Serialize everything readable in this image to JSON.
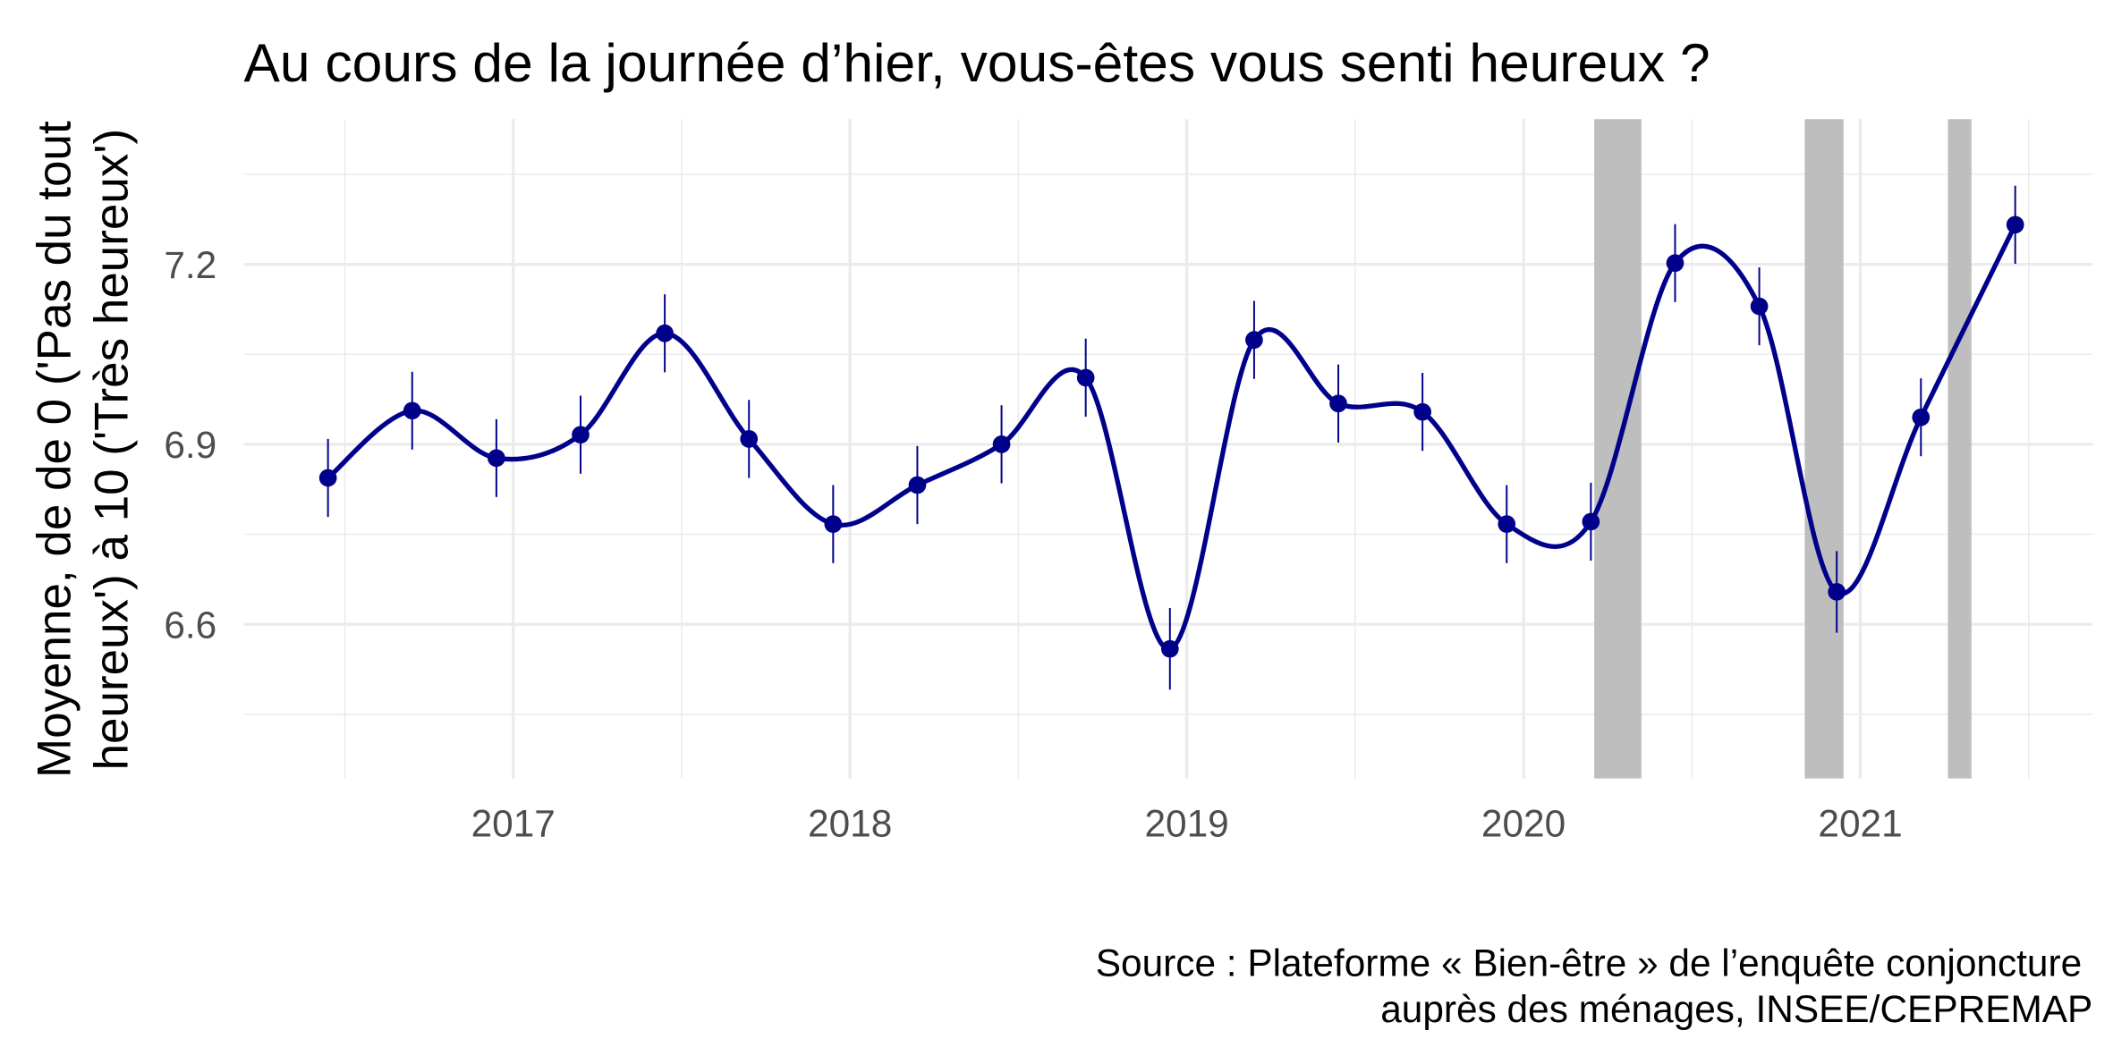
{
  "chart_data": {
    "type": "line",
    "title": "Au cours de la journée d’hier, vous-êtes vous senti heureux ?",
    "y_label": [
      "Moyenne, de de 0 ('Pas du tout",
      "heureux') à 10 ('Très heureux')"
    ],
    "caption": [
      "Source : Plateforme « Bien-être » de l’enquête conjoncture",
      "auprès des ménages, INSEE/CEPREMAP"
    ],
    "x": [
      2016.45,
      2016.7,
      2016.95,
      2017.2,
      2017.45,
      2017.7,
      2017.95,
      2018.2,
      2018.45,
      2018.7,
      2018.95,
      2019.2,
      2019.45,
      2019.7,
      2019.95,
      2020.2,
      2020.45,
      2020.7,
      2020.93,
      2021.18,
      2021.46
    ],
    "series": [
      {
        "color": "#00008b",
        "values": [
          6.844,
          6.956,
          6.877,
          6.916,
          7.085,
          6.909,
          6.767,
          6.832,
          6.9,
          7.011,
          6.559,
          7.074,
          6.968,
          6.954,
          6.767,
          6.771,
          7.202,
          7.13,
          6.654,
          6.945,
          7.266
        ],
        "errors": [
          0.065,
          0.065,
          0.065,
          0.065,
          0.065,
          0.065,
          0.065,
          0.065,
          0.065,
          0.065,
          0.068,
          0.065,
          0.065,
          0.065,
          0.065,
          0.065,
          0.065,
          0.065,
          0.068,
          0.065,
          0.065
        ]
      }
    ],
    "shaded_periods": [
      [
        2020.21,
        2020.35
      ],
      [
        2020.835,
        2020.95
      ],
      [
        2021.26,
        2021.33
      ]
    ],
    "shade_color": "#bebebe",
    "xlim": [
      2016.2,
      2021.69
    ],
    "ylim": [
      6.343,
      7.442
    ],
    "xticks": [
      2017,
      2018,
      2019,
      2020,
      2021
    ],
    "yticks": [
      6.6,
      6.9,
      7.2
    ],
    "grid": true
  }
}
